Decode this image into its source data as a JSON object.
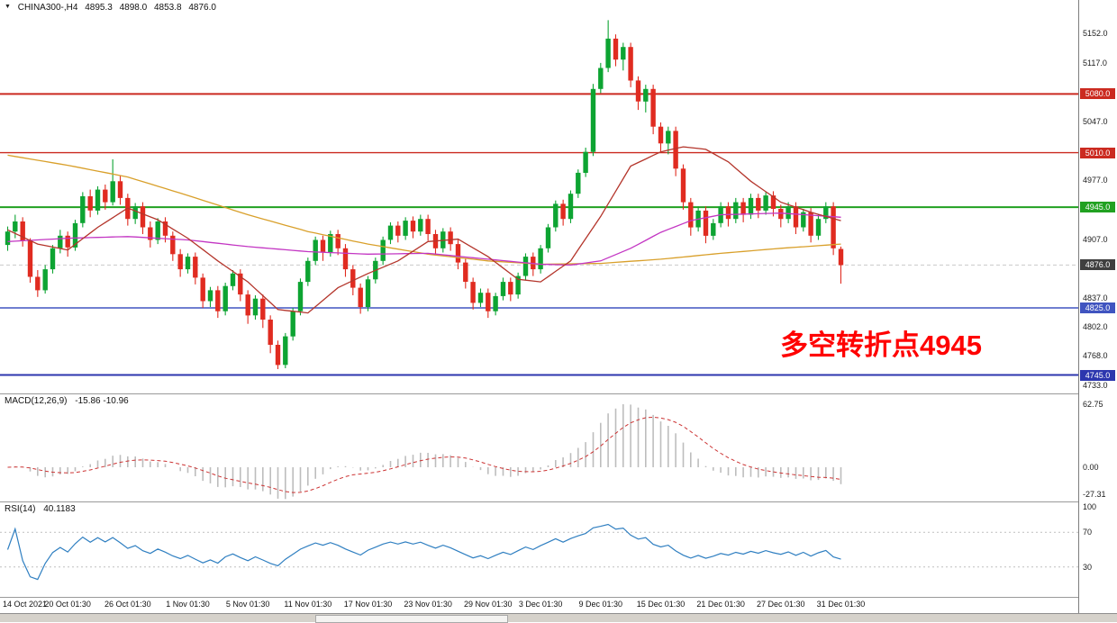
{
  "ticker": {
    "dropdown_icon": "▼",
    "symbol_tf": "CHINA300-,H4",
    "open": "4895.3",
    "high": "4898.0",
    "low": "4853.8",
    "close": "4876.0"
  },
  "annotation": {
    "text": "多空转折点4945",
    "color": "#ff0000"
  },
  "indicators": {
    "macd": {
      "name": "MACD(12,26,9)",
      "values": "-15.86 -10.96"
    },
    "rsi": {
      "name": "RSI(14)",
      "value": "40.1183"
    }
  },
  "colors": {
    "candle_up": "#0da432",
    "candle_down": "#e02b20",
    "axis_text": "#1a1a1a",
    "separator": "#9a9a9a",
    "current_price_badge": "#3f3f3f"
  },
  "chart_data": {
    "type": "candlestick",
    "title": "CHINA300- H4",
    "candles": [
      [
        4900,
        4922,
        4893,
        4916
      ],
      [
        4916,
        4936,
        4908,
        4928
      ],
      [
        4928,
        4933,
        4898,
        4905
      ],
      [
        4905,
        4908,
        4855,
        4862
      ],
      [
        4862,
        4870,
        4838,
        4846
      ],
      [
        4846,
        4876,
        4842,
        4871
      ],
      [
        4871,
        4900,
        4866,
        4896
      ],
      [
        4896,
        4918,
        4890,
        4911
      ],
      [
        4911,
        4916,
        4886,
        4897
      ],
      [
        4897,
        4930,
        4893,
        4926
      ],
      [
        4926,
        4963,
        4921,
        4958
      ],
      [
        4958,
        4966,
        4933,
        4941
      ],
      [
        4941,
        4970,
        4936,
        4966
      ],
      [
        4966,
        4972,
        4942,
        4951
      ],
      [
        4951,
        5002,
        4947,
        4976
      ],
      [
        4976,
        4983,
        4948,
        4956
      ],
      [
        4956,
        4961,
        4923,
        4931
      ],
      [
        4931,
        4950,
        4925,
        4946
      ],
      [
        4946,
        4951,
        4913,
        4921
      ],
      [
        4921,
        4928,
        4897,
        4906
      ],
      [
        4906,
        4932,
        4901,
        4928
      ],
      [
        4928,
        4933,
        4903,
        4911
      ],
      [
        4911,
        4916,
        4881,
        4889
      ],
      [
        4889,
        4895,
        4862,
        4871
      ],
      [
        4871,
        4890,
        4866,
        4886
      ],
      [
        4886,
        4891,
        4853,
        4861
      ],
      [
        4861,
        4866,
        4825,
        4833
      ],
      [
        4833,
        4850,
        4826,
        4846
      ],
      [
        4846,
        4851,
        4813,
        4821
      ],
      [
        4821,
        4855,
        4816,
        4851
      ],
      [
        4851,
        4870,
        4846,
        4866
      ],
      [
        4866,
        4871,
        4833,
        4841
      ],
      [
        4841,
        4846,
        4806,
        4816
      ],
      [
        4816,
        4840,
        4811,
        4836
      ],
      [
        4836,
        4841,
        4801,
        4811
      ],
      [
        4811,
        4816,
        4771,
        4781
      ],
      [
        4781,
        4786,
        4752,
        4757
      ],
      [
        4757,
        4795,
        4753,
        4791
      ],
      [
        4791,
        4825,
        4786,
        4821
      ],
      [
        4821,
        4860,
        4816,
        4856
      ],
      [
        4856,
        4885,
        4851,
        4881
      ],
      [
        4881,
        4910,
        4876,
        4906
      ],
      [
        4906,
        4911,
        4881,
        4891
      ],
      [
        4891,
        4917,
        4886,
        4913
      ],
      [
        4913,
        4918,
        4888,
        4896
      ],
      [
        4896,
        4901,
        4862,
        4871
      ],
      [
        4871,
        4876,
        4840,
        4849
      ],
      [
        4849,
        4854,
        4818,
        4826
      ],
      [
        4826,
        4863,
        4821,
        4859
      ],
      [
        4859,
        4885,
        4854,
        4881
      ],
      [
        4881,
        4910,
        4876,
        4906
      ],
      [
        4906,
        4927,
        4901,
        4923
      ],
      [
        4923,
        4928,
        4903,
        4911
      ],
      [
        4911,
        4933,
        4906,
        4929
      ],
      [
        4929,
        4934,
        4908,
        4916
      ],
      [
        4916,
        4936,
        4911,
        4931
      ],
      [
        4931,
        4936,
        4905,
        4913
      ],
      [
        4913,
        4918,
        4888,
        4896
      ],
      [
        4896,
        4920,
        4891,
        4916
      ],
      [
        4916,
        4921,
        4893,
        4901
      ],
      [
        4901,
        4906,
        4871,
        4879
      ],
      [
        4879,
        4884,
        4848,
        4856
      ],
      [
        4856,
        4861,
        4823,
        4831
      ],
      [
        4831,
        4848,
        4826,
        4843
      ],
      [
        4843,
        4848,
        4813,
        4821
      ],
      [
        4821,
        4843,
        4816,
        4839
      ],
      [
        4839,
        4861,
        4834,
        4856
      ],
      [
        4856,
        4861,
        4833,
        4841
      ],
      [
        4841,
        4867,
        4836,
        4863
      ],
      [
        4863,
        4890,
        4858,
        4886
      ],
      [
        4886,
        4891,
        4863,
        4871
      ],
      [
        4871,
        4900,
        4866,
        4896
      ],
      [
        4896,
        4925,
        4891,
        4921
      ],
      [
        4921,
        4953,
        4916,
        4949
      ],
      [
        4949,
        4954,
        4923,
        4931
      ],
      [
        4931,
        4965,
        4926,
        4961
      ],
      [
        4961,
        4990,
        4956,
        4986
      ],
      [
        4986,
        5016,
        4981,
        5011
      ],
      [
        5011,
        5092,
        5006,
        5086
      ],
      [
        5086,
        5117,
        5081,
        5111
      ],
      [
        5111,
        5168,
        5106,
        5146
      ],
      [
        5146,
        5151,
        5113,
        5121
      ],
      [
        5121,
        5141,
        5108,
        5136
      ],
      [
        5136,
        5141,
        5088,
        5096
      ],
      [
        5096,
        5101,
        5061,
        5071
      ],
      [
        5071,
        5091,
        5058,
        5086
      ],
      [
        5086,
        5091,
        5032,
        5041
      ],
      [
        5041,
        5046,
        5011,
        5021
      ],
      [
        5021,
        5041,
        5008,
        5036
      ],
      [
        5036,
        5041,
        4982,
        4991
      ],
      [
        4991,
        4996,
        4942,
        4951
      ],
      [
        4951,
        4956,
        4911,
        4921
      ],
      [
        4921,
        4946,
        4916,
        4941
      ],
      [
        4941,
        4946,
        4902,
        4911
      ],
      [
        4911,
        4931,
        4906,
        4926
      ],
      [
        4926,
        4951,
        4921,
        4946
      ],
      [
        4946,
        4951,
        4922,
        4931
      ],
      [
        4931,
        4956,
        4926,
        4951
      ],
      [
        4951,
        4956,
        4927,
        4936
      ],
      [
        4936,
        4961,
        4931,
        4956
      ],
      [
        4956,
        4961,
        4932,
        4941
      ],
      [
        4941,
        4963,
        4936,
        4959
      ],
      [
        4959,
        4964,
        4934,
        4943
      ],
      [
        4943,
        4948,
        4921,
        4931
      ],
      [
        4931,
        4951,
        4926,
        4946
      ],
      [
        4946,
        4951,
        4913,
        4921
      ],
      [
        4921,
        4943,
        4916,
        4939
      ],
      [
        4939,
        4944,
        4903,
        4911
      ],
      [
        4911,
        4936,
        4906,
        4931
      ],
      [
        4931,
        4951,
        4926,
        4946
      ],
      [
        4946,
        4951,
        4888,
        4896
      ],
      [
        4895.3,
        4898,
        4853.8,
        4876
      ]
    ],
    "time_labels": [
      {
        "i": 0,
        "t": "14 Oct 2021"
      },
      {
        "i": 8,
        "t": "20 Oct 01:30"
      },
      {
        "i": 16,
        "t": "26 Oct 01:30"
      },
      {
        "i": 24,
        "t": "1 Nov 01:30"
      },
      {
        "i": 32,
        "t": "5 Nov 01:30"
      },
      {
        "i": 40,
        "t": "11 Nov 01:30"
      },
      {
        "i": 48,
        "t": "17 Nov 01:30"
      },
      {
        "i": 56,
        "t": "23 Nov 01:30"
      },
      {
        "i": 64,
        "t": "29 Nov 01:30"
      },
      {
        "i": 71,
        "t": "3 Dec 01:30"
      },
      {
        "i": 79,
        "t": "9 Dec 01:30"
      },
      {
        "i": 87,
        "t": "15 Dec 01:30"
      },
      {
        "i": 95,
        "t": "21 Dec 01:30"
      },
      {
        "i": 103,
        "t": "27 Dec 01:30"
      },
      {
        "i": 111,
        "t": "31 Dec 01:30"
      }
    ],
    "y_axis": {
      "visible_min": 4733.0,
      "visible_max": 5152.0,
      "ticks": [
        5152.0,
        5117.0,
        5047.0,
        4977.0,
        4907.0,
        4837.0,
        4802.0,
        4768.0,
        4733.0
      ]
    },
    "current_price": 4876.0,
    "levels": [
      {
        "value": 5080.0,
        "line_color": "#cb2a20",
        "badge_color": "#cb2a20",
        "style": "solid",
        "width": 2
      },
      {
        "value": 5010.0,
        "line_color": "#cb2a20",
        "badge_color": "#cb2a20",
        "style": "solid",
        "width": 1.4
      },
      {
        "value": 4945.0,
        "line_color": "#21a121",
        "badge_color": "#21a121",
        "style": "solid",
        "width": 2
      },
      {
        "value": 4876.0,
        "line_color": "#c9c9c9",
        "badge_color": "#3f3f3f",
        "style": "dash",
        "width": 1,
        "current": true
      },
      {
        "value": 4825.0,
        "line_color": "#4054c0",
        "badge_color": "#4054c0",
        "style": "solid",
        "width": 1.6
      },
      {
        "value": 4745.0,
        "line_color": "#2c36ae",
        "badge_color": "#2c36ae",
        "style": "solid",
        "width": 2
      }
    ],
    "moving_averages": [
      {
        "name": "slow",
        "color": "#d9a02b",
        "keypoints": [
          [
            0,
            5007
          ],
          [
            8,
            4995
          ],
          [
            16,
            4981
          ],
          [
            24,
            4959
          ],
          [
            32,
            4936
          ],
          [
            40,
            4916
          ],
          [
            48,
            4901
          ],
          [
            56,
            4889
          ],
          [
            64,
            4881
          ],
          [
            71,
            4877
          ],
          [
            79,
            4878
          ],
          [
            87,
            4883
          ],
          [
            95,
            4890
          ],
          [
            103,
            4896
          ],
          [
            111,
            4901
          ]
        ]
      },
      {
        "name": "medium",
        "color": "#c336c3",
        "keypoints": [
          [
            0,
            4904
          ],
          [
            8,
            4908
          ],
          [
            16,
            4910
          ],
          [
            24,
            4906
          ],
          [
            32,
            4898
          ],
          [
            40,
            4892
          ],
          [
            48,
            4889
          ],
          [
            56,
            4890
          ],
          [
            64,
            4883
          ],
          [
            71,
            4877
          ],
          [
            75,
            4876
          ],
          [
            79,
            4881
          ],
          [
            83,
            4896
          ],
          [
            87,
            4915
          ],
          [
            91,
            4929
          ],
          [
            95,
            4936
          ],
          [
            103,
            4938
          ],
          [
            111,
            4933
          ]
        ]
      },
      {
        "name": "fast",
        "color": "#b4352b",
        "keypoints": [
          [
            0,
            4918
          ],
          [
            4,
            4901
          ],
          [
            8,
            4894
          ],
          [
            12,
            4921
          ],
          [
            16,
            4944
          ],
          [
            20,
            4930
          ],
          [
            24,
            4908
          ],
          [
            28,
            4881
          ],
          [
            32,
            4856
          ],
          [
            36,
            4823
          ],
          [
            40,
            4819
          ],
          [
            44,
            4849
          ],
          [
            48,
            4866
          ],
          [
            52,
            4881
          ],
          [
            56,
            4904
          ],
          [
            60,
            4907
          ],
          [
            64,
            4886
          ],
          [
            68,
            4859
          ],
          [
            71,
            4856
          ],
          [
            75,
            4881
          ],
          [
            79,
            4934
          ],
          [
            83,
            4994
          ],
          [
            87,
            5011
          ],
          [
            90,
            5017
          ],
          [
            93,
            5014
          ],
          [
            96,
            4999
          ],
          [
            99,
            4976
          ],
          [
            103,
            4951
          ],
          [
            107,
            4939
          ],
          [
            111,
            4929
          ]
        ]
      }
    ],
    "macd_panel": {
      "label": "MACD(12,26,9)",
      "main_value": -15.86,
      "signal_value": -10.96,
      "fast": 12,
      "slow": 26,
      "smoothing": 9,
      "ticks": [
        62.75,
        0.0,
        -27.31
      ],
      "hist_color": "#bdbdbd",
      "signal_color": "#cc3333"
    },
    "rsi_panel": {
      "label": "RSI(14)",
      "period": 14,
      "value": 40.1183,
      "ticks": [
        100,
        70,
        30
      ],
      "guide_levels": [
        70,
        30
      ],
      "color": "#2f7fc1"
    }
  }
}
